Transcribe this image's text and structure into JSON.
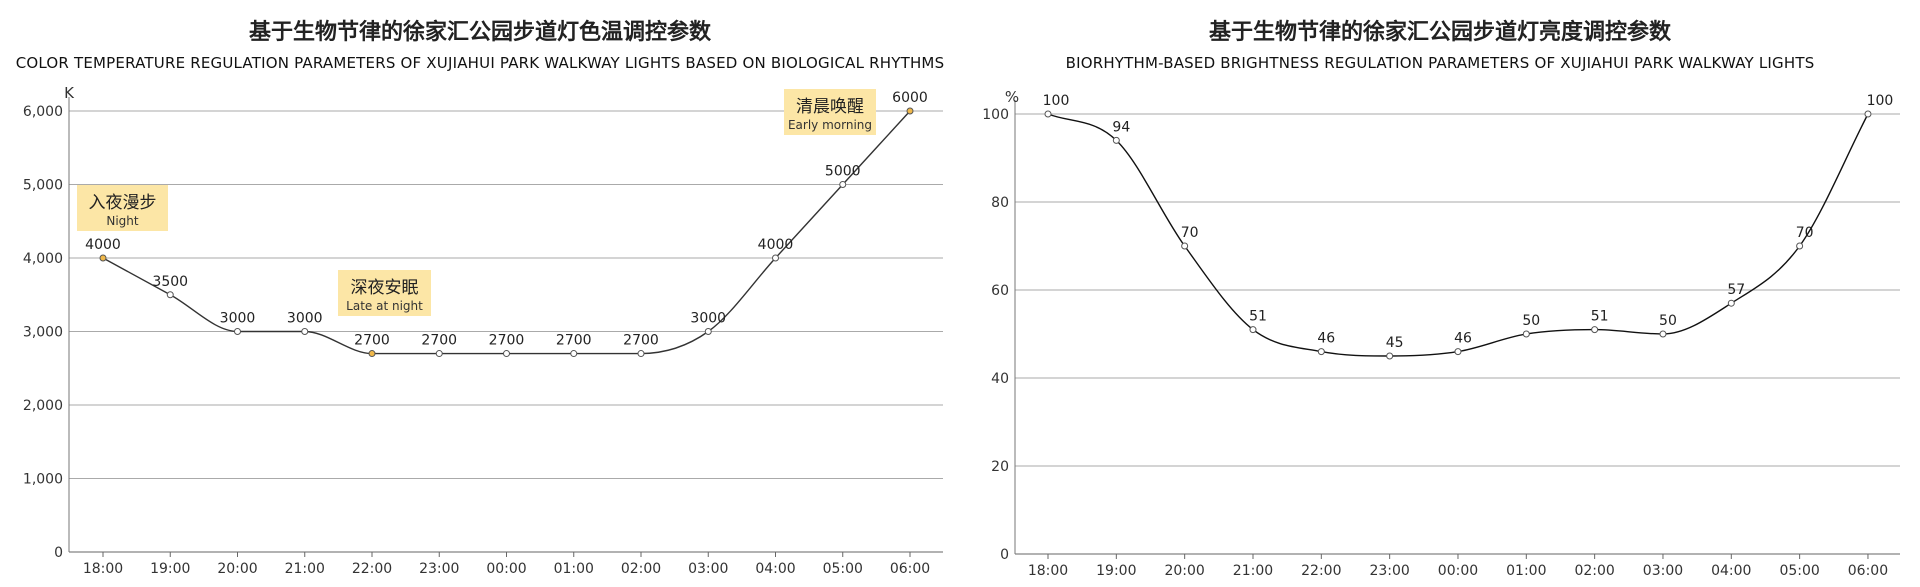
{
  "chart_data": [
    {
      "type": "line",
      "title": "基于生物节律的徐家汇公园步道灯色温调控参数",
      "subtitle": "COLOR TEMPERATURE REGULATION PARAMETERS OF XUJIAHUI PARK WALKWAY LIGHTS BASED ON BIOLOGICAL RHYTHMS",
      "ylabel": "K",
      "xlabel": "",
      "categories": [
        "18:00",
        "19:00",
        "20:00",
        "21:00",
        "22:00",
        "23:00",
        "00:00",
        "01:00",
        "02:00",
        "03:00",
        "04:00",
        "05:00",
        "06:00"
      ],
      "values": [
        4000,
        3500,
        3000,
        3000,
        2700,
        2700,
        2700,
        2700,
        2700,
        3000,
        4000,
        5000,
        6000
      ],
      "data_labels": [
        "4000",
        "3500",
        "3000",
        "3000",
        "2700",
        "2700",
        "2700",
        "2700",
        "2700",
        "3000",
        "4000",
        "5000",
        "6000"
      ],
      "ylim": [
        0,
        6000
      ],
      "yticks": [
        0,
        1000,
        2000,
        3000,
        4000,
        5000,
        6000
      ],
      "ytick_labels": [
        "0",
        "1,000",
        "2,000",
        "3,000",
        "4,000",
        "5,000",
        "6,000"
      ],
      "grid": true,
      "line_color": "#333333",
      "highlight_color": "#f0b84a",
      "highlight_indices": [
        0,
        4,
        12
      ],
      "annotations": [
        {
          "cn": "入夜漫步",
          "en": "Night",
          "index": 0
        },
        {
          "cn": "深夜安眠",
          "en": "Late at night",
          "index": 4
        },
        {
          "cn": "清晨唤醒",
          "en": "Early morning",
          "index": 12
        }
      ],
      "annotation_bg": "#fce6a6"
    },
    {
      "type": "line",
      "title": "基于生物节律的徐家汇公园步道灯亮度调控参数",
      "subtitle": "BIORHYTHM-BASED BRIGHTNESS REGULATION PARAMETERS OF XUJIAHUI PARK WALKWAY LIGHTS",
      "ylabel": "%",
      "xlabel": "",
      "categories": [
        "18:00",
        "19:00",
        "20:00",
        "21:00",
        "22:00",
        "23:00",
        "00:00",
        "01:00",
        "02:00",
        "03:00",
        "04:00",
        "05:00",
        "06:00"
      ],
      "values": [
        100,
        94,
        70,
        51,
        46,
        45,
        46,
        50,
        51,
        50,
        57,
        70,
        100
      ],
      "data_labels": [
        "100",
        "94",
        "70",
        "51",
        "46",
        "45",
        "46",
        "50",
        "51",
        "50",
        "57",
        "70",
        "100"
      ],
      "ylim": [
        0,
        100
      ],
      "yticks": [
        0,
        20,
        40,
        60,
        80,
        100
      ],
      "ytick_labels": [
        "0",
        "20",
        "40",
        "60",
        "80",
        "100"
      ],
      "grid": true,
      "line_color": "#111111"
    }
  ]
}
